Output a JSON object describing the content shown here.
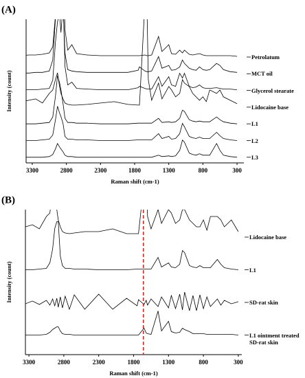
{
  "chart_data": [
    {
      "type": "line",
      "panel_label": "(A)",
      "x_label": "Raman shift (cm-1)",
      "y_label": "Intensity (count)",
      "color": "#000000",
      "xlim": [
        3390,
        200
      ],
      "xticks": [
        3300,
        2800,
        2300,
        1800,
        1300,
        800,
        300
      ],
      "x": [
        3450,
        3350,
        3250,
        3150,
        3050,
        3000,
        2960,
        2930,
        2900,
        2880,
        2850,
        2820,
        2780,
        2720,
        2650,
        2500,
        2300,
        2100,
        1900,
        1750,
        1730,
        1650,
        1620,
        1600,
        1550,
        1450,
        1400,
        1300,
        1260,
        1200,
        1140,
        1100,
        1070,
        1000,
        950,
        900,
        850,
        800,
        750,
        700,
        600,
        550,
        500,
        400,
        300
      ],
      "series": [
        {
          "name": "Petrolatum",
          "values": [
            2,
            3,
            3,
            4,
            6,
            15,
            60,
            80,
            120,
            150,
            150,
            40,
            10,
            18,
            5,
            3,
            2,
            2,
            2,
            2,
            2,
            3,
            2,
            2,
            3,
            30,
            8,
            18,
            5,
            4,
            10,
            6,
            10,
            4,
            3,
            4,
            5,
            3,
            2,
            2,
            2,
            2,
            2,
            2,
            1
          ]
        },
        {
          "name": "MCT oil",
          "values": [
            1,
            1,
            2,
            2,
            4,
            20,
            80,
            120,
            90,
            60,
            100,
            30,
            6,
            4,
            3,
            2,
            2,
            2,
            2,
            5,
            10,
            4,
            3,
            3,
            4,
            25,
            8,
            12,
            5,
            6,
            10,
            20,
            15,
            8,
            6,
            5,
            10,
            6,
            5,
            6,
            15,
            12,
            6,
            3,
            2
          ]
        },
        {
          "name": "Glycerol stearate",
          "values": [
            1,
            1,
            1,
            2,
            3,
            15,
            70,
            100,
            110,
            130,
            140,
            35,
            8,
            12,
            3,
            2,
            1,
            1,
            1,
            4,
            6,
            3,
            2,
            2,
            2,
            20,
            6,
            20,
            8,
            6,
            25,
            18,
            25,
            6,
            4,
            5,
            8,
            4,
            3,
            3,
            4,
            3,
            2,
            2,
            1
          ]
        },
        {
          "name": "Lidocaine base",
          "values": [
            8,
            10,
            12,
            6,
            20,
            25,
            40,
            50,
            30,
            20,
            12,
            6,
            4,
            3,
            3,
            4,
            6,
            8,
            4,
            3,
            3,
            150,
            150,
            40,
            10,
            35,
            12,
            30,
            25,
            15,
            20,
            40,
            35,
            30,
            20,
            15,
            10,
            15,
            8,
            25,
            20,
            25,
            15,
            10,
            5
          ]
        },
        {
          "name": "L1",
          "values": [
            0,
            0,
            0,
            1,
            2,
            10,
            40,
            70,
            60,
            50,
            30,
            8,
            2,
            2,
            1,
            1,
            0,
            0,
            0,
            1,
            1,
            1,
            1,
            1,
            1,
            8,
            2,
            3,
            2,
            3,
            8,
            20,
            18,
            6,
            4,
            3,
            4,
            3,
            3,
            3,
            10,
            6,
            3,
            1,
            0
          ]
        },
        {
          "name": "L2",
          "values": [
            0,
            0,
            0,
            1,
            2,
            8,
            30,
            50,
            40,
            35,
            25,
            6,
            2,
            2,
            1,
            1,
            0,
            0,
            0,
            1,
            1,
            1,
            1,
            1,
            1,
            10,
            3,
            6,
            2,
            3,
            10,
            25,
            20,
            6,
            4,
            3,
            5,
            3,
            3,
            3,
            12,
            7,
            3,
            1,
            0
          ]
        },
        {
          "name": "L3",
          "values": [
            0,
            0,
            0,
            0,
            1,
            4,
            12,
            20,
            15,
            12,
            8,
            3,
            1,
            1,
            0,
            0,
            0,
            0,
            0,
            0,
            0,
            0,
            0,
            0,
            0,
            3,
            1,
            2,
            1,
            2,
            10,
            25,
            22,
            6,
            4,
            3,
            5,
            3,
            3,
            3,
            20,
            10,
            3,
            1,
            0
          ]
        }
      ]
    },
    {
      "type": "line",
      "panel_label": "(B)",
      "x_label": "Raman shift (cm-1)",
      "y_label": "Intensity (count)",
      "color": "#000000",
      "xlim": [
        3350,
        250
      ],
      "xticks": [
        3300,
        2800,
        2300,
        1800,
        1300,
        800,
        300
      ],
      "marker_x": 1660,
      "marker_color": "#e02020",
      "x": [
        3450,
        3350,
        3250,
        3150,
        3050,
        3000,
        2960,
        2930,
        2900,
        2880,
        2850,
        2820,
        2780,
        2720,
        2650,
        2500,
        2300,
        2100,
        1900,
        1750,
        1730,
        1650,
        1620,
        1600,
        1550,
        1450,
        1400,
        1300,
        1260,
        1200,
        1140,
        1100,
        1070,
        1000,
        950,
        900,
        850,
        800,
        750,
        700,
        600,
        550,
        500,
        400,
        300
      ],
      "series": [
        {
          "name": "Lidocaine base",
          "values": [
            10,
            15,
            18,
            12,
            30,
            35,
            70,
            60,
            40,
            25,
            15,
            8,
            6,
            5,
            6,
            8,
            8,
            12,
            5,
            5,
            5,
            80,
            80,
            30,
            12,
            40,
            20,
            40,
            35,
            20,
            25,
            40,
            40,
            25,
            20,
            15,
            15,
            25,
            10,
            30,
            30,
            25,
            15,
            25,
            8
          ]
        },
        {
          "name": "L1",
          "values": [
            0,
            0,
            0,
            1,
            2,
            10,
            30,
            60,
            70,
            70,
            20,
            6,
            2,
            2,
            1,
            1,
            0,
            0,
            0,
            1,
            1,
            1,
            1,
            1,
            1,
            18,
            4,
            10,
            4,
            3,
            8,
            28,
            25,
            6,
            4,
            3,
            6,
            3,
            3,
            3,
            15,
            8,
            3,
            1,
            0
          ]
        },
        {
          "name": "SD-rat skin",
          "values": [
            1,
            -2,
            2,
            -3,
            3,
            -4,
            5,
            -5,
            6,
            -7,
            8,
            -8,
            9,
            -10,
            11,
            -10,
            12,
            -10,
            6,
            -5,
            4,
            -3,
            3,
            -4,
            5,
            -6,
            8,
            -8,
            10,
            -9,
            12,
            -11,
            15,
            -12,
            10,
            -12,
            11,
            -9,
            8,
            -6,
            5,
            -4,
            3,
            -2,
            1
          ]
        },
        {
          "name": "L1 ointment treated SD-rat skin",
          "values": [
            0,
            0,
            0,
            0,
            1,
            4,
            8,
            10,
            12,
            12,
            6,
            2,
            1,
            1,
            0,
            0,
            0,
            0,
            0,
            0,
            0,
            10,
            3,
            2,
            1,
            35,
            6,
            20,
            5,
            3,
            4,
            10,
            8,
            5,
            2,
            2,
            2,
            2,
            1,
            1,
            1,
            1,
            1,
            1,
            0
          ]
        }
      ]
    }
  ]
}
